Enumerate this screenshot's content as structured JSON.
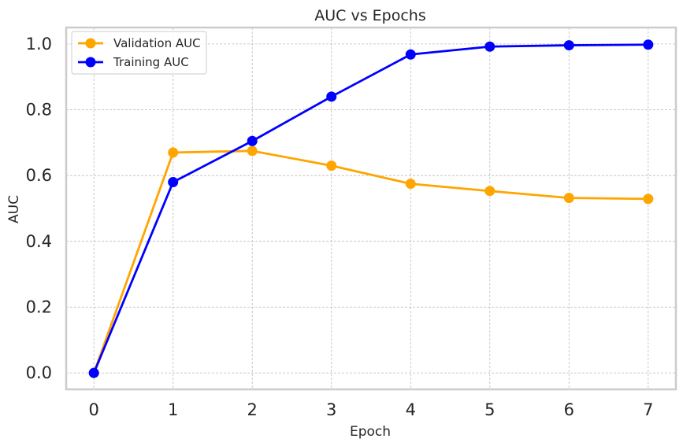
{
  "chart_data": {
    "type": "line",
    "title": "AUC vs Epochs",
    "xlabel": "Epoch",
    "ylabel": "AUC",
    "xlim": [
      -0.35,
      7.35
    ],
    "ylim": [
      -0.05,
      1.05
    ],
    "xticks": [
      0,
      1,
      2,
      3,
      4,
      5,
      6,
      7
    ],
    "yticks": [
      0.0,
      0.2,
      0.4,
      0.6,
      0.8,
      1.0
    ],
    "ytick_labels": [
      "0.0",
      "0.2",
      "0.4",
      "0.6",
      "0.8",
      "1.0"
    ],
    "grid": true,
    "legend_position": "top-left",
    "x": [
      0,
      1,
      2,
      3,
      4,
      5,
      6,
      7
    ],
    "series": [
      {
        "name": "Validation AUC",
        "color": "#FFA500",
        "values": [
          0.0,
          0.67,
          0.675,
          0.63,
          0.575,
          0.553,
          0.532,
          0.529
        ]
      },
      {
        "name": "Training AUC",
        "color": "#0000FF",
        "values": [
          0.0,
          0.58,
          0.705,
          0.84,
          0.968,
          0.992,
          0.996,
          0.998
        ]
      }
    ]
  }
}
